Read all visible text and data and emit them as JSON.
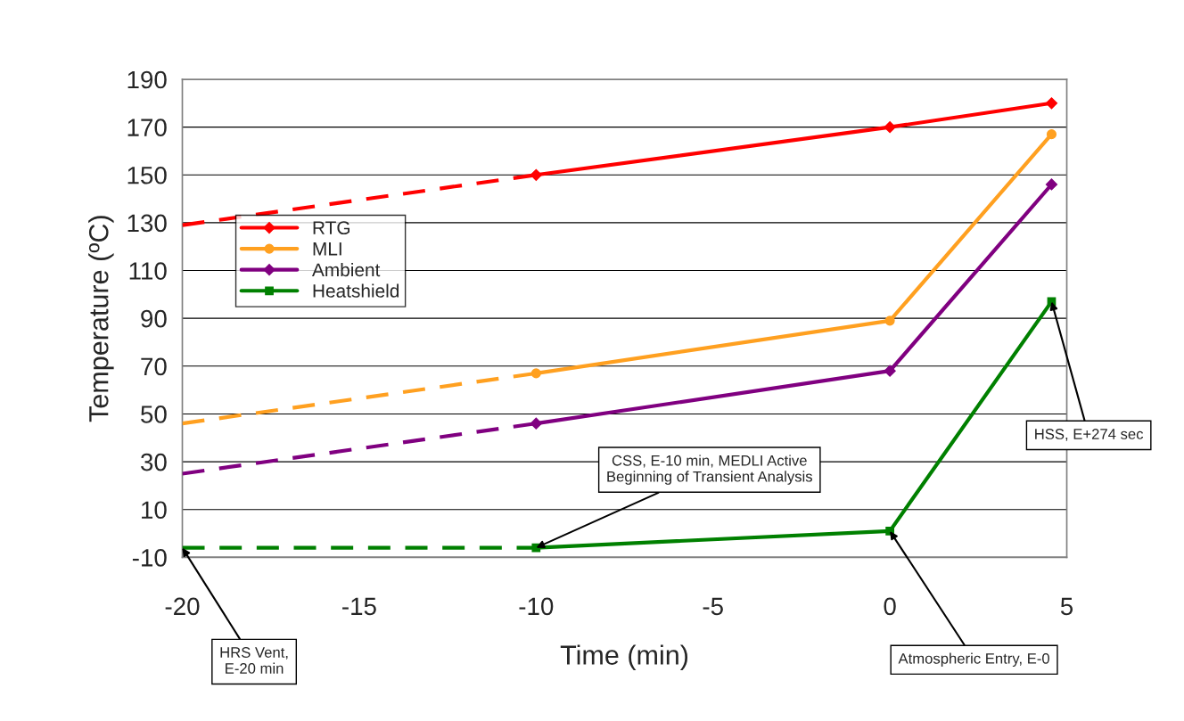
{
  "chart_data": {
    "type": "line",
    "xlabel": "Time (min)",
    "ylabel": "Temperature (ºC)",
    "xlim": [
      -20,
      5
    ],
    "xticks": [
      -20,
      -15,
      -10,
      -5,
      0,
      5
    ],
    "ylim": [
      -10,
      190
    ],
    "yticks": [
      -10,
      10,
      30,
      50,
      70,
      90,
      110,
      130,
      150,
      170,
      190
    ],
    "grid": "y",
    "legend": "left",
    "series": [
      {
        "name": "RTG",
        "color": "#ff0000",
        "marker": "diamond",
        "line_style": "solid",
        "x": [
          -10,
          0,
          4.57
        ],
        "values": [
          150,
          170,
          180
        ]
      },
      {
        "name": "MLI",
        "color": "#ffa020",
        "marker": "circle",
        "line_style": "solid",
        "x": [
          -10,
          0,
          4.57
        ],
        "values": [
          67,
          89,
          167
        ]
      },
      {
        "name": "Ambient",
        "color": "#800080",
        "marker": "diamond",
        "line_style": "solid",
        "x": [
          -10,
          0,
          4.57
        ],
        "values": [
          46,
          68,
          146
        ]
      },
      {
        "name": "Heatshield",
        "color": "#008000",
        "marker": "square",
        "line_style": "solid",
        "x": [
          -10,
          0,
          4.57
        ],
        "values": [
          -6,
          1,
          97
        ]
      },
      {
        "color": "#ff0000",
        "marker": "none",
        "line_style": "dashed",
        "x": [
          -20,
          -10
        ],
        "values": [
          129,
          150
        ]
      },
      {
        "color": "#ffa020",
        "marker": "none",
        "line_style": "dashed",
        "x": [
          -20,
          -10
        ],
        "values": [
          46,
          67
        ]
      },
      {
        "color": "#800080",
        "marker": "none",
        "line_style": "dashed",
        "x": [
          -20,
          -10
        ],
        "values": [
          25,
          46
        ]
      },
      {
        "color": "#008000",
        "marker": "none",
        "line_style": "dashed",
        "x": [
          -20,
          -10
        ],
        "values": [
          -6,
          -6
        ]
      }
    ],
    "annotations": [
      {
        "text": "HRS Vent,\nE-20 min",
        "x": -20,
        "y": -6
      },
      {
        "text": "CSS, E-10 min, MEDLI Active\nBeginning of Transient Analysis",
        "x": -10,
        "y": -6
      },
      {
        "text": "Atmospheric Entry, E-0",
        "x": 0,
        "y": 1
      },
      {
        "text": "HSS, E+274 sec",
        "x": 4.57,
        "y": 97
      }
    ]
  }
}
